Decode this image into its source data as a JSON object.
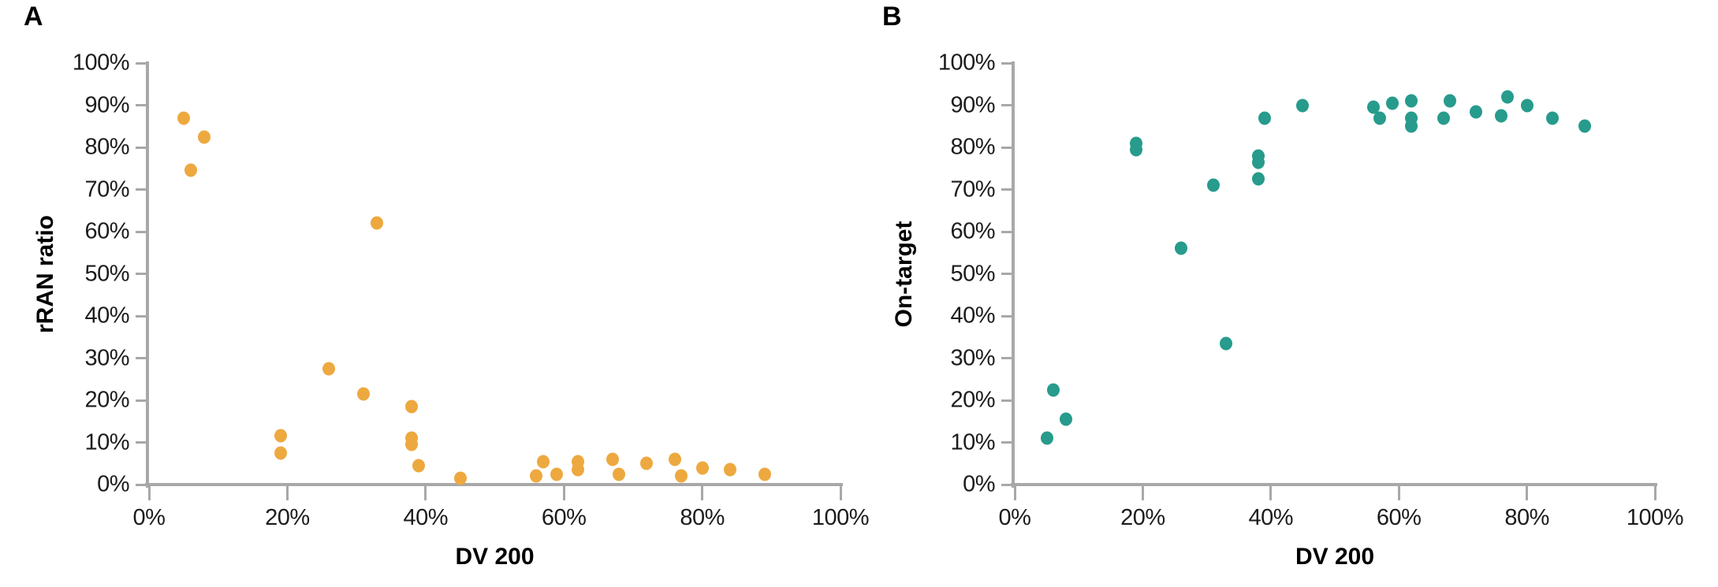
{
  "chart_data": [
    {
      "type": "scatter",
      "panel_label": "A",
      "xlabel": "DV 200",
      "ylabel": "rRAN ratio",
      "x_tick_labels": [
        "0%",
        "20%",
        "40%",
        "60%",
        "80%",
        "100%"
      ],
      "y_tick_labels": [
        "0%",
        "10%",
        "20%",
        "30%",
        "40%",
        "50%",
        "60%",
        "70%",
        "80%",
        "90%",
        "100%"
      ],
      "xlim": [
        0,
        100
      ],
      "ylim": [
        0,
        100
      ],
      "grid": false,
      "legend": false,
      "marker_color": "#EDA93F",
      "axis_color": "#A8A8A8",
      "points": [
        [
          5,
          87
        ],
        [
          6,
          74.5
        ],
        [
          8,
          82.5
        ],
        [
          19,
          11.5
        ],
        [
          19,
          7.5
        ],
        [
          26,
          27.5
        ],
        [
          31,
          21.5
        ],
        [
          33,
          62
        ],
        [
          38,
          18.5
        ],
        [
          38,
          11
        ],
        [
          38,
          9.5
        ],
        [
          39,
          4.5
        ],
        [
          45,
          1.5
        ],
        [
          56,
          2
        ],
        [
          57,
          5.5
        ],
        [
          59,
          2.5
        ],
        [
          62,
          5.5
        ],
        [
          62,
          3.5
        ],
        [
          67,
          6
        ],
        [
          68,
          2.5
        ],
        [
          72,
          5
        ],
        [
          76,
          6
        ],
        [
          77,
          2
        ],
        [
          80,
          4
        ],
        [
          84,
          3.5
        ],
        [
          89,
          2.5
        ]
      ]
    },
    {
      "type": "scatter",
      "panel_label": "B",
      "xlabel": "DV 200",
      "ylabel": "On-target",
      "x_tick_labels": [
        "0%",
        "20%",
        "40%",
        "60%",
        "80%",
        "100%"
      ],
      "y_tick_labels": [
        "0%",
        "10%",
        "20%",
        "30%",
        "40%",
        "50%",
        "60%",
        "70%",
        "80%",
        "90%",
        "100%"
      ],
      "xlim": [
        0,
        100
      ],
      "ylim": [
        0,
        100
      ],
      "grid": false,
      "legend": false,
      "marker_color": "#279B8C",
      "axis_color": "#A8A8A8",
      "points": [
        [
          5,
          11
        ],
        [
          6,
          22.5
        ],
        [
          8,
          15.5
        ],
        [
          19,
          81
        ],
        [
          19,
          79.5
        ],
        [
          26,
          56
        ],
        [
          31,
          71
        ],
        [
          33,
          33.5
        ],
        [
          38,
          78
        ],
        [
          38,
          76.5
        ],
        [
          38,
          72.5
        ],
        [
          39,
          87
        ],
        [
          45,
          90
        ],
        [
          56,
          89.5
        ],
        [
          57,
          87
        ],
        [
          59,
          90.5
        ],
        [
          62,
          91
        ],
        [
          62,
          87
        ],
        [
          62,
          85
        ],
        [
          67,
          87
        ],
        [
          68,
          91
        ],
        [
          72,
          88.5
        ],
        [
          76,
          87.5
        ],
        [
          77,
          92
        ],
        [
          80,
          90
        ],
        [
          84,
          87
        ],
        [
          89,
          85
        ]
      ]
    }
  ]
}
